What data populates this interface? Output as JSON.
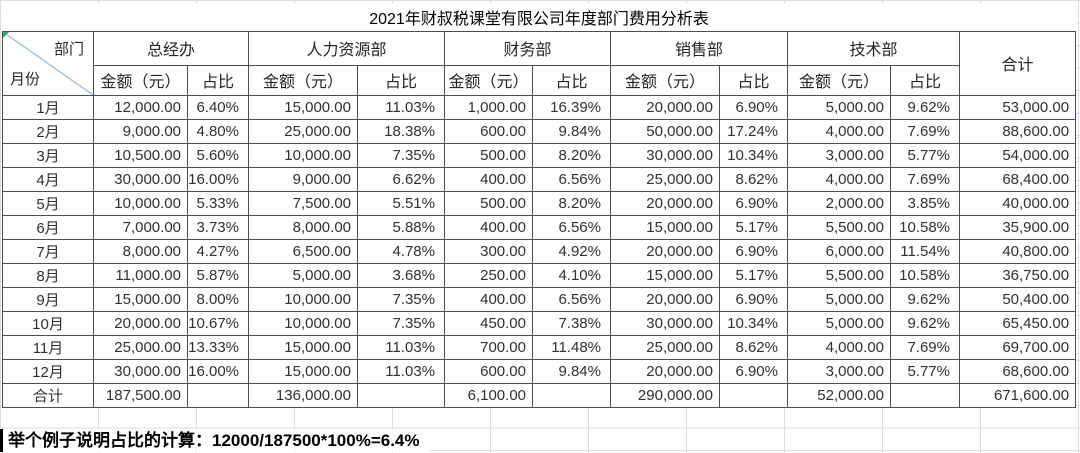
{
  "title": "2021年财叔税课堂有限公司年度部门费用分析表",
  "corner": {
    "department_label": "部门",
    "month_label": "月份"
  },
  "departments": [
    "总经办",
    "人力资源部",
    "财务部",
    "销售部",
    "技术部"
  ],
  "labels": {
    "amount_header": "金额（元）",
    "ratio_header": "占比",
    "grand_total_col": "合计"
  },
  "rows": [
    {
      "month": "1月",
      "cells": [
        "12,000.00",
        "6.40%",
        "15,000.00",
        "11.03%",
        "1,000.00",
        "16.39%",
        "20,000.00",
        "6.90%",
        "5,000.00",
        "9.62%",
        "53,000.00"
      ]
    },
    {
      "month": "2月",
      "cells": [
        "9,000.00",
        "4.80%",
        "25,000.00",
        "18.38%",
        "600.00",
        "9.84%",
        "50,000.00",
        "17.24%",
        "4,000.00",
        "7.69%",
        "88,600.00"
      ]
    },
    {
      "month": "3月",
      "cells": [
        "10,500.00",
        "5.60%",
        "10,000.00",
        "7.35%",
        "500.00",
        "8.20%",
        "30,000.00",
        "10.34%",
        "3,000.00",
        "5.77%",
        "54,000.00"
      ]
    },
    {
      "month": "4月",
      "cells": [
        "30,000.00",
        "16.00%",
        "9,000.00",
        "6.62%",
        "400.00",
        "6.56%",
        "25,000.00",
        "8.62%",
        "4,000.00",
        "7.69%",
        "68,400.00"
      ]
    },
    {
      "month": "5月",
      "cells": [
        "10,000.00",
        "5.33%",
        "7,500.00",
        "5.51%",
        "500.00",
        "8.20%",
        "20,000.00",
        "6.90%",
        "2,000.00",
        "3.85%",
        "40,000.00"
      ]
    },
    {
      "month": "6月",
      "cells": [
        "7,000.00",
        "3.73%",
        "8,000.00",
        "5.88%",
        "400.00",
        "6.56%",
        "15,000.00",
        "5.17%",
        "5,500.00",
        "10.58%",
        "35,900.00"
      ]
    },
    {
      "month": "7月",
      "cells": [
        "8,000.00",
        "4.27%",
        "6,500.00",
        "4.78%",
        "300.00",
        "4.92%",
        "20,000.00",
        "6.90%",
        "6,000.00",
        "11.54%",
        "40,800.00"
      ]
    },
    {
      "month": "8月",
      "cells": [
        "11,000.00",
        "5.87%",
        "5,000.00",
        "3.68%",
        "250.00",
        "4.10%",
        "15,000.00",
        "5.17%",
        "5,500.00",
        "10.58%",
        "36,750.00"
      ]
    },
    {
      "month": "9月",
      "cells": [
        "15,000.00",
        "8.00%",
        "10,000.00",
        "7.35%",
        "400.00",
        "6.56%",
        "20,000.00",
        "6.90%",
        "5,000.00",
        "9.62%",
        "50,400.00"
      ]
    },
    {
      "month": "10月",
      "cells": [
        "20,000.00",
        "10.67%",
        "10,000.00",
        "7.35%",
        "450.00",
        "7.38%",
        "30,000.00",
        "10.34%",
        "5,000.00",
        "9.62%",
        "65,450.00"
      ]
    },
    {
      "month": "11月",
      "cells": [
        "25,000.00",
        "13.33%",
        "15,000.00",
        "11.03%",
        "700.00",
        "11.48%",
        "25,000.00",
        "8.62%",
        "4,000.00",
        "7.69%",
        "69,700.00"
      ]
    },
    {
      "month": "12月",
      "cells": [
        "30,000.00",
        "16.00%",
        "15,000.00",
        "11.03%",
        "600.00",
        "9.84%",
        "20,000.00",
        "6.90%",
        "3,000.00",
        "5.77%",
        "68,600.00"
      ]
    }
  ],
  "total_row": {
    "label": "合计",
    "cells": [
      "187,500.00",
      "",
      "136,000.00",
      "",
      "6,100.00",
      "",
      "290,000.00",
      "",
      "52,000.00",
      "",
      "671,600.00"
    ]
  },
  "note": "举个例子说明占比的计算：12000/187500*100%=6.4%",
  "colors": {
    "table_border": "#4d4d4d",
    "diagonal_line": "#9cc3e8",
    "green_corner_marker": "#3fa45b",
    "gridline": "#d9dee4",
    "text": "#303030"
  }
}
